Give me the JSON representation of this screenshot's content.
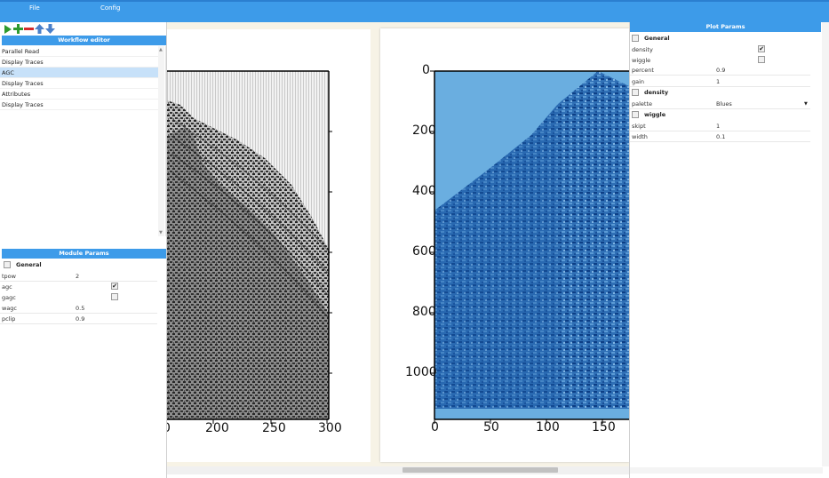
{
  "menubar": {
    "file": "File",
    "config": "Config"
  },
  "toolbar": {
    "run_icon": "play-icon",
    "add_icon": "plus-icon",
    "remove_icon": "minus-icon",
    "up_icon": "arrow-up-icon",
    "down_icon": "arrow-down-icon"
  },
  "workflow_editor": {
    "title": "Workflow editor",
    "items": [
      {
        "label": "Parallel Read",
        "selected": false
      },
      {
        "label": "Display Traces",
        "selected": false
      },
      {
        "label": "AGC",
        "selected": true
      },
      {
        "label": "Display Traces",
        "selected": false
      },
      {
        "label": "Attributes",
        "selected": false
      },
      {
        "label": "Display Traces",
        "selected": false
      }
    ]
  },
  "module_params": {
    "title": "Module Params",
    "section": "General",
    "rows": [
      {
        "label": "tpow",
        "value": "2"
      },
      {
        "label": "agc",
        "checked": true
      },
      {
        "label": "gagc",
        "checked": false
      },
      {
        "label": "wagc",
        "value": "0.5"
      },
      {
        "label": "pclip",
        "value": "0.9"
      }
    ]
  },
  "plot_left": {
    "xticks": [
      "0",
      "200",
      "250",
      "300"
    ]
  },
  "plot_right": {
    "yticks": [
      "0",
      "200",
      "400",
      "600",
      "800",
      "1000"
    ],
    "xticks": [
      "0",
      "50",
      "100",
      "150"
    ]
  },
  "plot_params": {
    "title": "Plot Params",
    "general_section": "General",
    "density_label": "density",
    "density_checked": true,
    "wiggle_label": "wiggle",
    "wiggle_checked": false,
    "percent_label": "percent",
    "percent_value": "0.9",
    "gain_label": "gain",
    "gain_value": "1",
    "density_section": "density",
    "palette_label": "palette",
    "palette_value": "Blues",
    "wiggle_section": "wiggle",
    "skipt_label": "skipt",
    "skipt_value": "1",
    "width_label": "width",
    "width_value": "0.1"
  },
  "colors": {
    "accent": "#3d9be9",
    "selected_row": "#c7e1f9",
    "density_fill": "#6aaee0",
    "density_dark": "#1f5fa8"
  }
}
